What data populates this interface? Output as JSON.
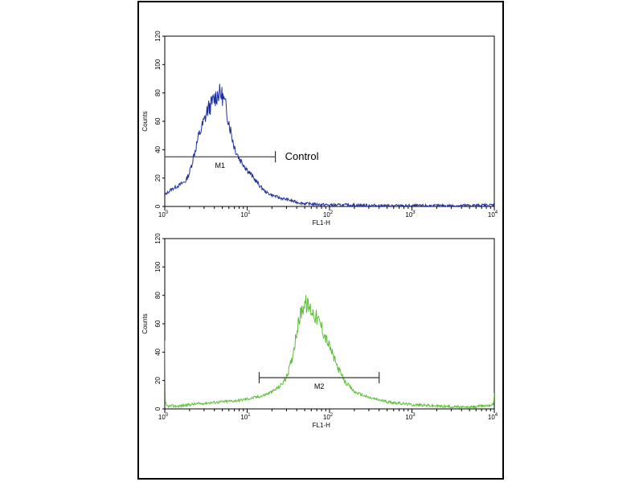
{
  "chart_data": [
    {
      "type": "line",
      "subtype": "flow-cytometry-histogram",
      "xlabel": "FL1-H",
      "ylabel": "Counts",
      "xscale": "log",
      "xlim": [
        1,
        10000
      ],
      "ylim": [
        0,
        120
      ],
      "x_ticks": [
        1,
        10,
        100,
        1000,
        10000
      ],
      "x_tick_labels": [
        {
          "base": "10",
          "exp": "0"
        },
        {
          "base": "10",
          "exp": "1"
        },
        {
          "base": "10",
          "exp": "2"
        },
        {
          "base": "10",
          "exp": "3"
        },
        {
          "base": "10",
          "exp": "4"
        }
      ],
      "y_ticks": [
        0,
        20,
        40,
        60,
        80,
        100,
        120
      ],
      "y_tick_labels": [
        "0",
        "20",
        "40",
        "60",
        "80",
        "100",
        "120"
      ],
      "color": "#1f2f9e",
      "marker": {
        "label": "M1",
        "x_range": [
          1,
          22
        ],
        "y": 35
      },
      "annotation": "Control",
      "series": [
        {
          "x": [
            1,
            1.2,
            1.5,
            1.8,
            2.0,
            2.3,
            2.6,
            3.0,
            3.3,
            3.7,
            4.0,
            4.5,
            5.0,
            5.5,
            6.0,
            6.5,
            7.0,
            8.0,
            9.0,
            10,
            12,
            14,
            17,
            20,
            25,
            30,
            40,
            50,
            70,
            100,
            200,
            500,
            1000,
            3000,
            10000
          ],
          "y": [
            8,
            12,
            15,
            18,
            24,
            38,
            50,
            60,
            68,
            72,
            76,
            80,
            78,
            70,
            60,
            50,
            42,
            34,
            30,
            26,
            20,
            15,
            10,
            8,
            6,
            5,
            3,
            2,
            1.5,
            1,
            1,
            0.5,
            0.5,
            0.5,
            1
          ]
        }
      ]
    },
    {
      "type": "line",
      "subtype": "flow-cytometry-histogram",
      "xlabel": "FL1-H",
      "ylabel": "Counts",
      "xscale": "log",
      "xlim": [
        1,
        10000
      ],
      "ylim": [
        0,
        120
      ],
      "x_ticks": [
        1,
        10,
        100,
        1000,
        10000
      ],
      "x_tick_labels": [
        {
          "base": "10",
          "exp": "0"
        },
        {
          "base": "10",
          "exp": "1"
        },
        {
          "base": "10",
          "exp": "2"
        },
        {
          "base": "10",
          "exp": "3"
        },
        {
          "base": "10",
          "exp": "4"
        }
      ],
      "y_ticks": [
        0,
        20,
        40,
        60,
        80,
        100,
        120
      ],
      "y_tick_labels": [
        "0",
        "20",
        "40",
        "60",
        "80",
        "100",
        "120"
      ],
      "color": "#5cbf38",
      "marker": {
        "label": "M2",
        "x_range": [
          14,
          400
        ],
        "y": 22
      },
      "annotation": "",
      "series": [
        {
          "x": [
            1,
            1.01,
            1.05,
            1.5,
            2,
            3,
            5,
            8,
            10,
            15,
            20,
            25,
            30,
            35,
            40,
            45,
            50,
            55,
            60,
            70,
            80,
            90,
            100,
            120,
            150,
            200,
            300,
            500,
            1000,
            2000,
            5000,
            9800,
            10000
          ],
          "y": [
            45,
            5,
            2,
            2,
            3,
            4,
            5,
            6,
            7,
            9,
            12,
            16,
            22,
            35,
            55,
            68,
            75,
            72,
            70,
            64,
            58,
            50,
            44,
            32,
            20,
            12,
            8,
            5,
            3,
            2,
            1,
            3,
            12
          ]
        }
      ]
    }
  ]
}
